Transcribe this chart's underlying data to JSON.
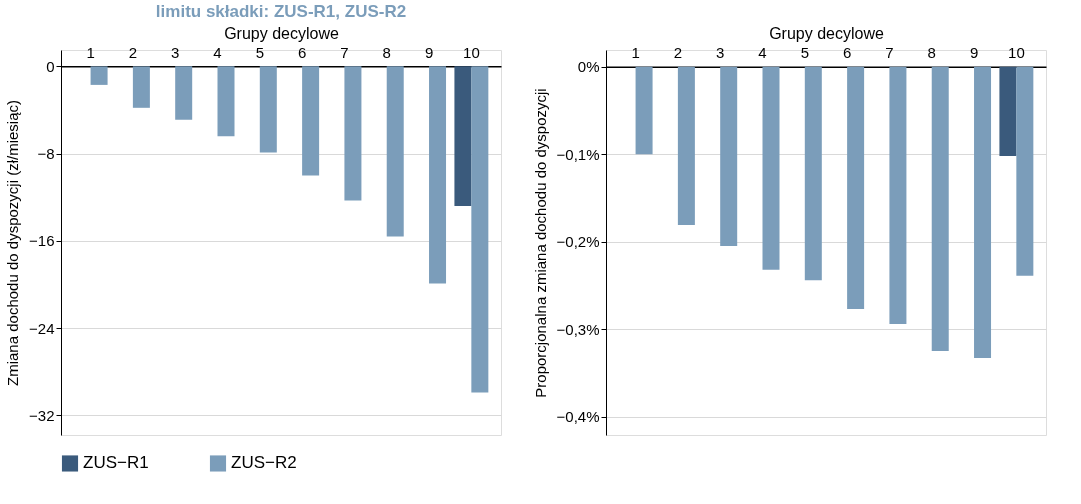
{
  "chart_data": [
    {
      "type": "bar",
      "title": "limitu składki: ZUS‑R1, ZUS‑R2",
      "xlabel": "Grupy decylowe",
      "ylabel": "Zmiana dochodu do dyspozycji (zł/miesiąc)",
      "categories": [
        "1",
        "2",
        "3",
        "4",
        "5",
        "6",
        "7",
        "8",
        "9",
        "10"
      ],
      "series": [
        {
          "name": "ZUS−R1",
          "color": "#3a5a7c",
          "values": [
            0,
            0,
            0,
            0,
            0,
            0,
            0,
            0,
            0,
            -12.8
          ]
        },
        {
          "name": "ZUS−R2",
          "color": "#7b9dba",
          "values": [
            -1.7,
            -3.8,
            -4.9,
            -6.4,
            -7.9,
            -10.0,
            -12.3,
            -15.6,
            -19.9,
            -29.9
          ]
        }
      ],
      "ylim": [
        -33.8,
        1.5
      ],
      "yticks": [
        {
          "value": 0,
          "label": "0"
        },
        {
          "value": -8,
          "label": "−8"
        },
        {
          "value": -16,
          "label": "−16"
        },
        {
          "value": -24,
          "label": "−24"
        },
        {
          "value": -32,
          "label": "−32"
        }
      ],
      "grid": "y",
      "legend": "bottom"
    },
    {
      "type": "bar",
      "xlabel": "Grupy decylowe",
      "ylabel": "Proporcjonalna zmiana dochodu do dyspozycji",
      "categories": [
        "1",
        "2",
        "3",
        "4",
        "5",
        "6",
        "7",
        "8",
        "9",
        "10"
      ],
      "series": [
        {
          "name": "ZUS−R1",
          "color": "#3a5a7c",
          "values": [
            0,
            0,
            0,
            0,
            0,
            0,
            0,
            0,
            0,
            -0.102
          ]
        },
        {
          "name": "ZUS−R2",
          "color": "#7b9dba",
          "values": [
            -0.1,
            -0.181,
            -0.205,
            -0.232,
            -0.244,
            -0.277,
            -0.294,
            -0.325,
            -0.333,
            -0.239
          ]
        }
      ],
      "ylim": [
        -0.421,
        0.019
      ],
      "yticks": [
        {
          "value": 0,
          "label": "0%"
        },
        {
          "value": -0.1,
          "label": "−0,1%"
        },
        {
          "value": -0.2,
          "label": "−0,2%"
        },
        {
          "value": -0.3,
          "label": "−0,3%"
        },
        {
          "value": -0.4,
          "label": "−0,4%"
        }
      ],
      "grid": "y",
      "legend": "bottom"
    }
  ]
}
